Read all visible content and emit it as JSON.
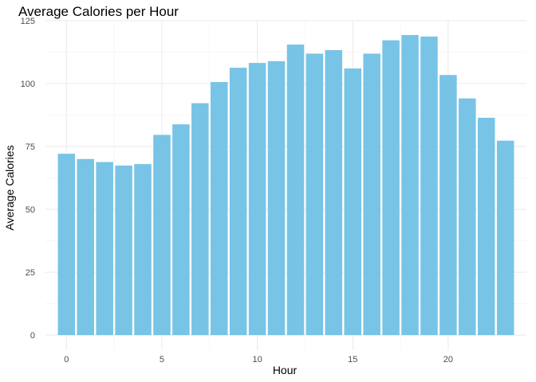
{
  "chart_data": {
    "type": "bar",
    "title": "Average Calories per Hour",
    "xlabel": "Hour",
    "ylabel": "Average Calories",
    "x": [
      0,
      1,
      2,
      3,
      4,
      5,
      6,
      7,
      8,
      9,
      10,
      11,
      12,
      13,
      14,
      15,
      16,
      17,
      18,
      19,
      20,
      21,
      22,
      23
    ],
    "values": [
      72.1,
      70.0,
      68.8,
      67.4,
      68.0,
      79.6,
      83.8,
      92.2,
      100.6,
      106.3,
      108.2,
      108.9,
      115.5,
      111.9,
      113.3,
      106.0,
      111.9,
      117.2,
      119.3,
      118.7,
      103.4,
      94.1,
      86.4,
      77.3
    ],
    "xlim": [
      -1.1,
      24.1
    ],
    "ylim": [
      -6,
      125
    ],
    "x_ticks": [
      0,
      5,
      10,
      15,
      20
    ],
    "y_ticks": [
      0,
      25,
      50,
      75,
      100,
      125
    ],
    "bar_color": "#78c4e6",
    "grid": true,
    "legend": "none"
  }
}
